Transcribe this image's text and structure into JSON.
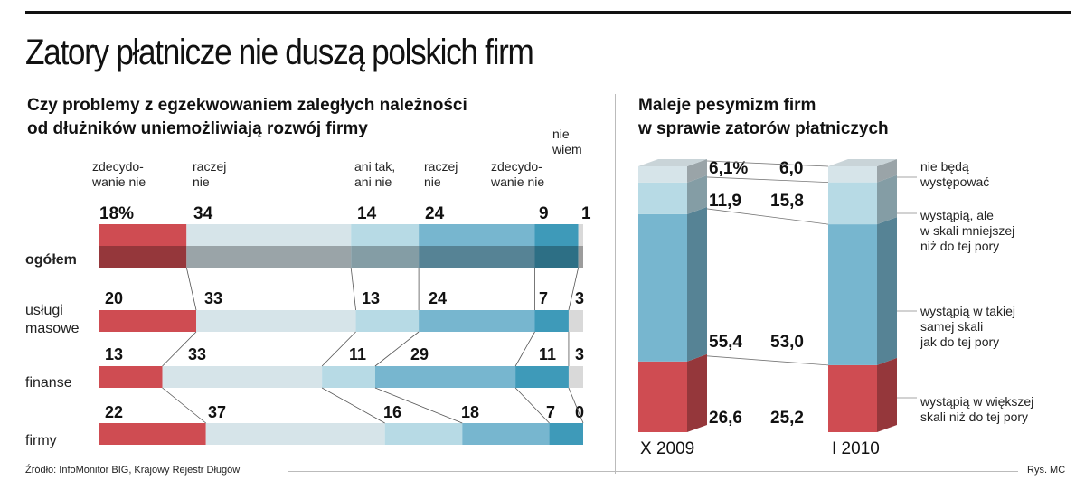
{
  "title": "Zatory płatnicze nie duszą polskich firm",
  "left": {
    "subtitle_1": "Czy problemy z egzekwowaniem zaległych należności",
    "subtitle_2": "od dłużników uniemożliwiają rozwój firmy",
    "categories": [
      {
        "l1": "zdecydo-",
        "l2": "wanie nie"
      },
      {
        "l1": "raczej",
        "l2": "nie"
      },
      {
        "l1": "ani tak,",
        "l2": "ani nie"
      },
      {
        "l1": "raczej",
        "l2": "nie"
      },
      {
        "l1": "zdecydo-",
        "l2": "wanie nie"
      },
      {
        "l1": "nie",
        "l2": "wiem"
      }
    ],
    "rows": [
      {
        "label_1": "ogółem",
        "label_2": "",
        "labels": [
          "18%",
          "34",
          "14",
          "24",
          "9",
          "1"
        ]
      },
      {
        "label_1": "usługi",
        "label_2": "masowe",
        "labels": [
          "20",
          "33",
          "13",
          "24",
          "7",
          "3"
        ]
      },
      {
        "label_1": "finanse",
        "label_2": "",
        "labels": [
          "13",
          "33",
          "11",
          "29",
          "11",
          "3"
        ]
      },
      {
        "label_1": "firmy",
        "label_2": "",
        "labels": [
          "22",
          "37",
          "16",
          "18",
          "7",
          "0"
        ]
      }
    ]
  },
  "right": {
    "subtitle_1": "Maleje pesymizm firm",
    "subtitle_2": "w sprawie zatorów płatniczych",
    "periods": [
      "X 2009",
      "I 2010"
    ],
    "values_left": [
      "6,1%",
      "11,9",
      "55,4",
      "26,6"
    ],
    "values_right": [
      "6,0",
      "15,8",
      "53,0",
      "25,2"
    ],
    "legend": [
      {
        "l1": "nie będą",
        "l2": "występować",
        "l3": ""
      },
      {
        "l1": "wystąpią, ale",
        "l2": "w skali mniejszej",
        "l3": "niż do tej pory"
      },
      {
        "l1": "wystąpią w takiej",
        "l2": "samej skali",
        "l3": "jak do tej pory"
      },
      {
        "l1": "wystąpią w większej",
        "l2": "skali niż do tej pory",
        "l3": ""
      }
    ]
  },
  "source": "Źródło: InfoMonitor BIG, Krajowy Rejestr Długów",
  "credit": "Rys. MC",
  "colors": [
    "#cf4c52",
    "#d6e4e9",
    "#b7dae5",
    "#77b6cf",
    "#3e9ab9",
    "#d9d9d9"
  ],
  "chart_data": [
    {
      "type": "bar",
      "stacked": true,
      "orientation": "horizontal",
      "title": "Czy problemy z egzekwowaniem zaległych należności od dłużników uniemożliwiają rozwój firmy",
      "categories": [
        "ogółem",
        "usługi masowe",
        "finanse",
        "firmy"
      ],
      "series": [
        {
          "name": "zdecydowanie nie",
          "values": [
            18,
            20,
            13,
            22
          ]
        },
        {
          "name": "raczej nie",
          "values": [
            34,
            33,
            33,
            37
          ]
        },
        {
          "name": "ani tak, ani nie",
          "values": [
            14,
            13,
            11,
            16
          ]
        },
        {
          "name": "raczej nie",
          "values": [
            24,
            24,
            29,
            18
          ]
        },
        {
          "name": "zdecydowanie nie",
          "values": [
            9,
            7,
            11,
            7
          ]
        },
        {
          "name": "nie wiem",
          "values": [
            1,
            3,
            3,
            0
          ]
        }
      ],
      "unit": "%"
    },
    {
      "type": "bar",
      "stacked": true,
      "orientation": "vertical",
      "title": "Maleje pesymizm firm w sprawie zatorów płatniczych",
      "categories": [
        "X 2009",
        "I 2010"
      ],
      "series": [
        {
          "name": "wystąpią w większej skali niż do tej pory",
          "values": [
            26.6,
            25.2
          ]
        },
        {
          "name": "wystąpią w takiej samej skali jak do tej pory",
          "values": [
            55.4,
            53.0
          ]
        },
        {
          "name": "wystąpią, ale w skali mniejszej niż do tej pory",
          "values": [
            11.9,
            15.8
          ]
        },
        {
          "name": "nie będą występować",
          "values": [
            6.1,
            6.0
          ]
        }
      ],
      "unit": "%"
    }
  ]
}
